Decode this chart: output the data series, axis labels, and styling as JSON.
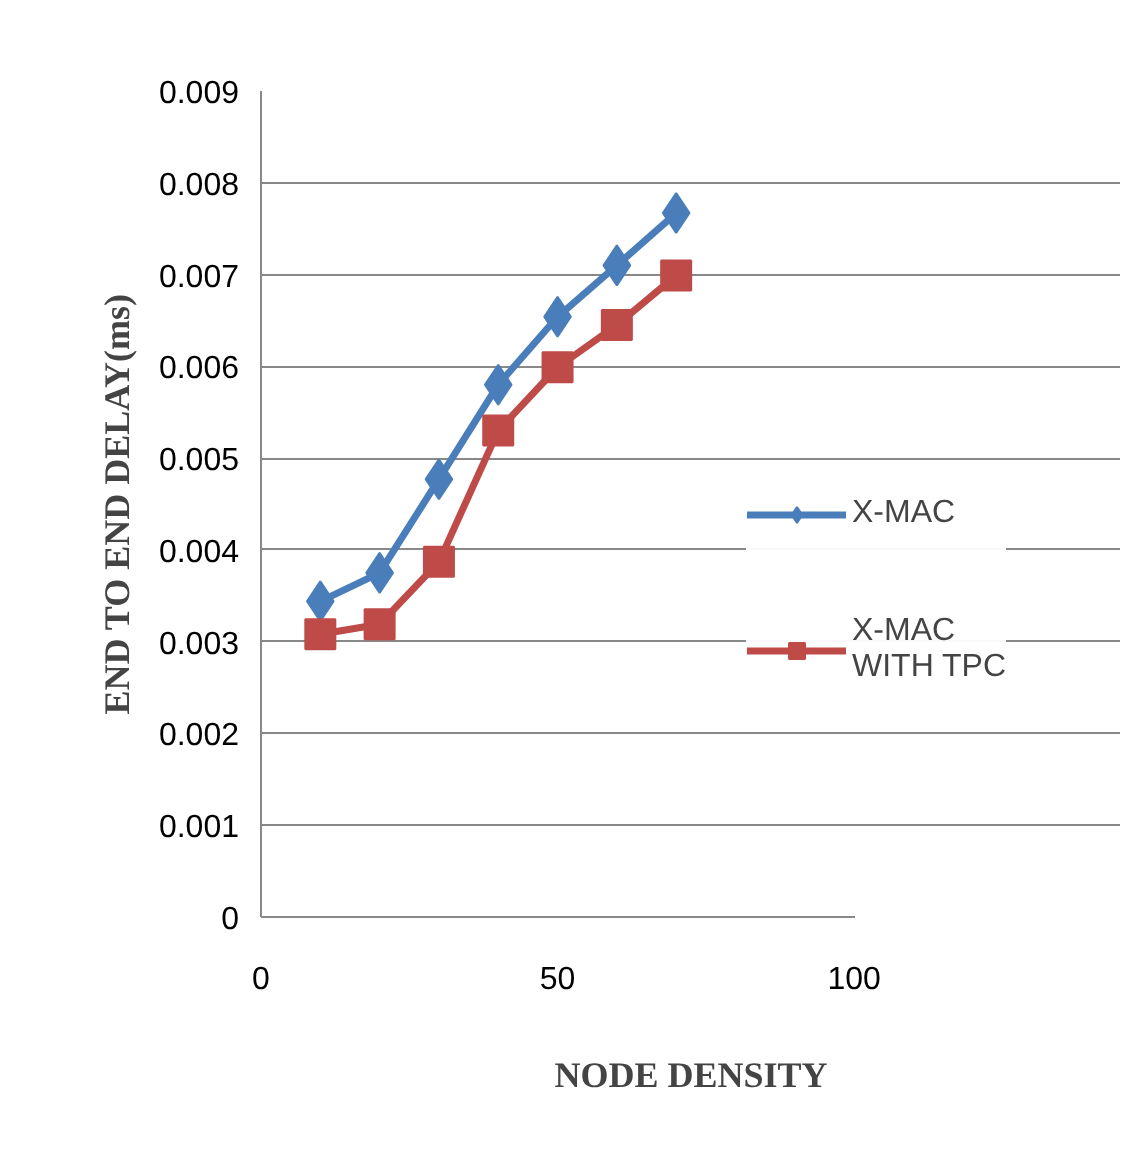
{
  "chart_data": {
    "type": "line",
    "xlabel": "NODE DENSITY",
    "ylabel": "END TO END DELAY(ms)",
    "x": [
      10,
      20,
      30,
      40,
      50,
      60,
      70
    ],
    "series": [
      {
        "name": "X-MAC",
        "color": "#4a7ebb",
        "marker": "diamond",
        "values": [
          0.00344,
          0.00375,
          0.00477,
          0.0058,
          0.00654,
          0.0071,
          0.00767
        ]
      },
      {
        "name": "X-MAC WITH TPC",
        "color": "#be4b48",
        "marker": "square",
        "values": [
          0.00308,
          0.00319,
          0.00387,
          0.0053,
          0.00599,
          0.00645,
          0.00699
        ]
      }
    ],
    "xlim": [
      0,
      100
    ],
    "xticks": [
      0,
      50,
      100
    ],
    "ylim": [
      0,
      0.009
    ],
    "yticks": [
      {
        "value": 0,
        "label": "0"
      },
      0.001,
      0.002,
      0.003,
      0.004,
      0.005,
      0.006,
      0.007,
      0.008,
      0.009
    ],
    "grid": "y",
    "legend": "right"
  }
}
